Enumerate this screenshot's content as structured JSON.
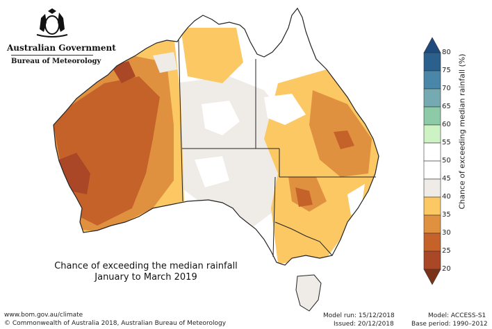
{
  "logo": {
    "government": "Australian Government",
    "bureau": "Bureau of Meteorology"
  },
  "map": {
    "title_line1": "Chance of exceeding the median rainfall",
    "title_line2": "January to March 2019"
  },
  "legend": {
    "label": "Chance of exceeding median rainfall (%)",
    "ticks": [
      "80",
      "75",
      "70",
      "65",
      "60",
      "55",
      "50",
      "45",
      "40",
      "35",
      "30",
      "25",
      "20"
    ],
    "bins": [
      {
        "from": 75,
        "to": 80,
        "color": "#2b5f8c"
      },
      {
        "from": 70,
        "to": 75,
        "color": "#4a86a8"
      },
      {
        "from": 65,
        "to": 70,
        "color": "#75aab2"
      },
      {
        "from": 60,
        "to": 65,
        "color": "#8ccaa8"
      },
      {
        "from": 55,
        "to": 60,
        "color": "#cdf2c4"
      },
      {
        "from": 50,
        "to": 55,
        "color": "#ffffff"
      },
      {
        "from": 45,
        "to": 50,
        "color": "#ffffff"
      },
      {
        "from": 40,
        "to": 45,
        "color": "#efebe6"
      },
      {
        "from": 35,
        "to": 40,
        "color": "#fcc864"
      },
      {
        "from": 30,
        "to": 35,
        "color": "#e0913f"
      },
      {
        "from": 25,
        "to": 30,
        "color": "#c4622a"
      },
      {
        "from": 20,
        "to": 25,
        "color": "#aa4726"
      }
    ],
    "top_arrow_color": "#1f4a7c",
    "bottom_arrow_color": "#7a3218"
  },
  "footer": {
    "website": "www.bom.gov.au/climate",
    "copyright": "© Commonwealth of Australia 2018, Australian Bureau of Meteorology",
    "model_run": "Model run: 15/12/2018",
    "issued": "Issued: 20/12/2018",
    "model": "Model: ACCESS-S1",
    "base_period": "Base period: 1990–2012"
  }
}
